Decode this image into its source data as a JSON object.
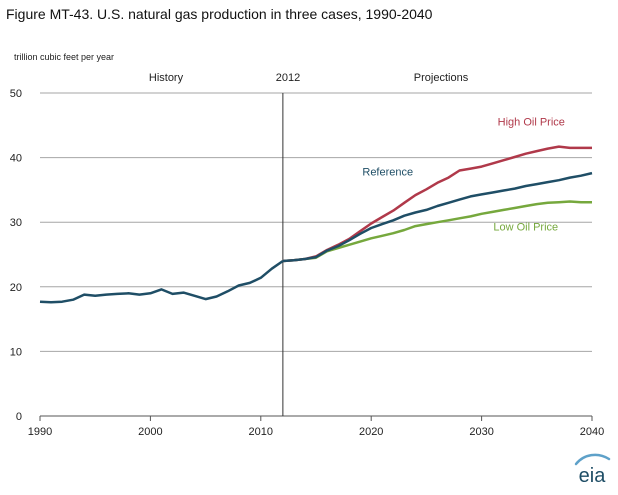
{
  "figure_title": "Figure MT-43. U.S. natural gas production in three cases, 1990-2040",
  "unit_label": "trillion cubic feet per year",
  "section_labels": {
    "history": "History",
    "divider_year": "2012",
    "projections": "Projections"
  },
  "logo_text": "eia",
  "colors": {
    "Reference": "#1f4e66",
    "High Oil Price": "#b0394a",
    "Low Oil Price": "#76a83d",
    "history": "#1f4e66",
    "grid": "#a6a6a6",
    "axis": "#555555",
    "logo_swoosh": "#5ea1c9"
  },
  "chart_data": {
    "type": "line",
    "title": "Figure MT-43. U.S. natural gas production in three cases, 1990-2040",
    "xlabel": "",
    "ylabel": "trillion cubic feet per year",
    "xlim": [
      1990,
      2040
    ],
    "ylim": [
      0,
      50
    ],
    "x_ticks": [
      1990,
      2000,
      2010,
      2020,
      2030,
      2040
    ],
    "y_ticks": [
      0,
      10,
      20,
      30,
      40,
      50
    ],
    "grid": "horizontal",
    "divider_x": 2012,
    "history": {
      "x": [
        1990,
        1991,
        1992,
        1993,
        1994,
        1995,
        1996,
        1997,
        1998,
        1999,
        2000,
        2001,
        2002,
        2003,
        2004,
        2005,
        2006,
        2007,
        2008,
        2009,
        2010,
        2011,
        2012
      ],
      "values": [
        17.7,
        17.6,
        17.7,
        18.0,
        18.8,
        18.6,
        18.8,
        18.9,
        19.0,
        18.8,
        19.0,
        19.6,
        18.9,
        19.1,
        18.6,
        18.1,
        18.5,
        19.3,
        20.2,
        20.6,
        21.4,
        22.8,
        24.0
      ]
    },
    "series": [
      {
        "name": "High Oil Price",
        "label_position": "top-right",
        "x": [
          2012,
          2013,
          2014,
          2015,
          2016,
          2017,
          2018,
          2019,
          2020,
          2021,
          2022,
          2023,
          2024,
          2025,
          2026,
          2027,
          2028,
          2029,
          2030,
          2031,
          2032,
          2033,
          2034,
          2035,
          2036,
          2037,
          2038,
          2039,
          2040
        ],
        "values": [
          24.0,
          24.1,
          24.3,
          24.7,
          25.7,
          26.5,
          27.4,
          28.6,
          29.8,
          30.8,
          31.8,
          33.0,
          34.2,
          35.1,
          36.1,
          36.9,
          38.0,
          38.3,
          38.6,
          39.1,
          39.6,
          40.1,
          40.6,
          41.0,
          41.4,
          41.7,
          41.5,
          41.5,
          41.5
        ]
      },
      {
        "name": "Reference",
        "label_position": "middle",
        "x": [
          2012,
          2013,
          2014,
          2015,
          2016,
          2017,
          2018,
          2019,
          2020,
          2021,
          2022,
          2023,
          2024,
          2025,
          2026,
          2027,
          2028,
          2029,
          2030,
          2031,
          2032,
          2033,
          2034,
          2035,
          2036,
          2037,
          2038,
          2039,
          2040
        ],
        "values": [
          24.0,
          24.1,
          24.3,
          24.6,
          25.6,
          26.3,
          27.2,
          28.2,
          29.1,
          29.7,
          30.3,
          31.0,
          31.5,
          31.9,
          32.5,
          33.0,
          33.5,
          34.0,
          34.3,
          34.6,
          34.9,
          35.2,
          35.6,
          35.9,
          36.2,
          36.5,
          36.9,
          37.2,
          37.6
        ]
      },
      {
        "name": "Low Oil Price",
        "label_position": "bottom-right",
        "x": [
          2012,
          2013,
          2014,
          2015,
          2016,
          2017,
          2018,
          2019,
          2020,
          2021,
          2022,
          2023,
          2024,
          2025,
          2026,
          2027,
          2028,
          2029,
          2030,
          2031,
          2032,
          2033,
          2034,
          2035,
          2036,
          2037,
          2038,
          2039,
          2040
        ],
        "values": [
          24.0,
          24.1,
          24.3,
          24.5,
          25.5,
          26.0,
          26.5,
          27.0,
          27.5,
          27.9,
          28.3,
          28.8,
          29.4,
          29.7,
          30.0,
          30.3,
          30.6,
          30.9,
          31.3,
          31.6,
          31.9,
          32.2,
          32.5,
          32.8,
          33.0,
          33.1,
          33.2,
          33.1,
          33.1
        ]
      }
    ]
  }
}
